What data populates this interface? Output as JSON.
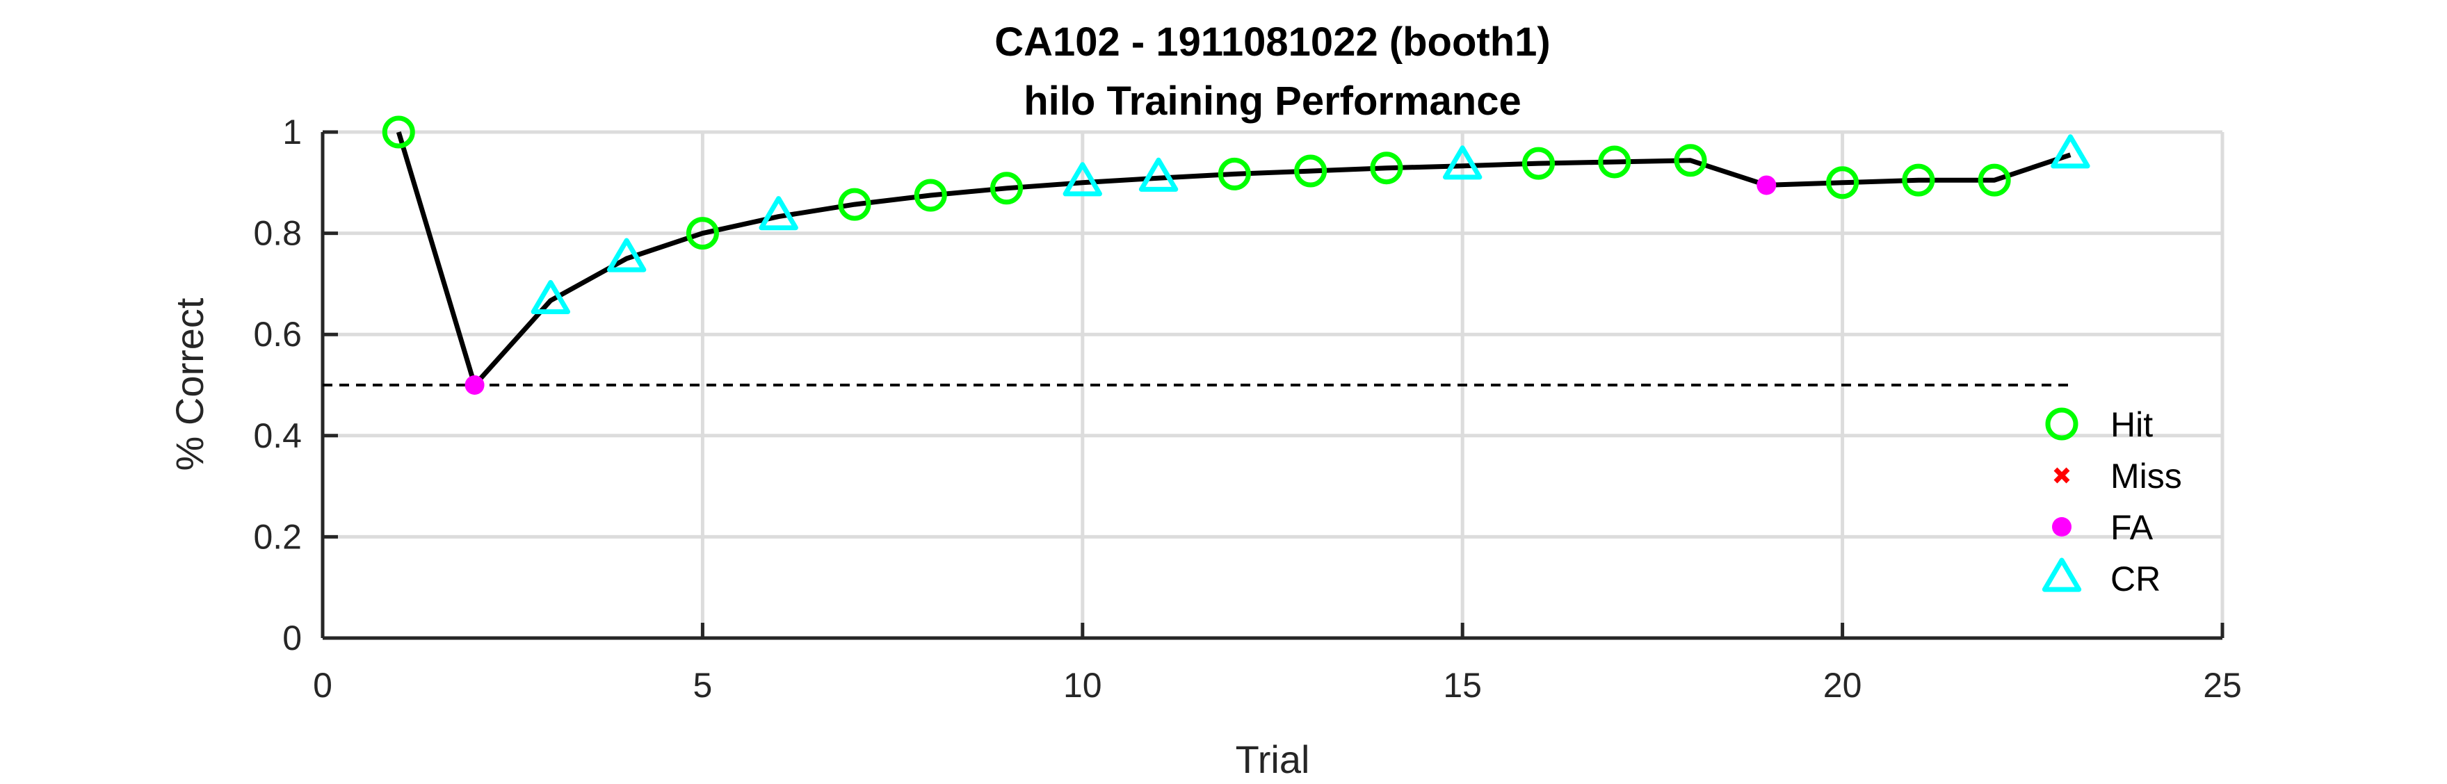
{
  "chart_data": {
    "type": "line",
    "title": [
      "CA102 - 1911081022 (booth1)",
      "hilo Training Performance"
    ],
    "xlabel": "Trial",
    "ylabel": "% Correct",
    "xlim": [
      0,
      25
    ],
    "ylim": [
      0,
      1
    ],
    "xticks": [
      0,
      5,
      10,
      15,
      20,
      25
    ],
    "yticks": [
      0,
      0.2,
      0.4,
      0.6,
      0.8,
      1
    ],
    "xtick_labels": [
      "0",
      "5",
      "10",
      "15",
      "20",
      "25"
    ],
    "ytick_labels": [
      "0",
      "0.2",
      "0.4",
      "0.6",
      "0.8",
      "1"
    ],
    "grid": true,
    "x": [
      1,
      2,
      3,
      4,
      5,
      6,
      7,
      8,
      9,
      10,
      11,
      12,
      13,
      14,
      15,
      16,
      17,
      18,
      19,
      20,
      21,
      22,
      23
    ],
    "y": [
      1.0,
      0.5,
      0.667,
      0.75,
      0.8,
      0.833,
      0.857,
      0.875,
      0.889,
      0.9,
      0.909,
      0.917,
      0.923,
      0.929,
      0.933,
      0.938,
      0.941,
      0.944,
      0.895,
      0.9,
      0.905,
      0.905,
      0.955
    ],
    "outcomes": [
      "Hit",
      "FA",
      "CR",
      "CR",
      "Hit",
      "CR",
      "Hit",
      "Hit",
      "Hit",
      "CR",
      "CR",
      "Hit",
      "Hit",
      "Hit",
      "CR",
      "Hit",
      "Hit",
      "Hit",
      "FA",
      "Hit",
      "Hit",
      "Hit",
      "CR"
    ],
    "chance_line": {
      "y": 0.5,
      "x": [
        0,
        23
      ],
      "style": "dashed"
    },
    "legend": {
      "placement": "lower-right",
      "entries": [
        {
          "label": "Hit",
          "marker": "circle-open",
          "color": "#00ff00"
        },
        {
          "label": "Miss",
          "marker": "x",
          "color": "#ff0000"
        },
        {
          "label": "FA",
          "marker": "dot-filled",
          "color": "#ff00ff"
        },
        {
          "label": "CR",
          "marker": "triangle-open",
          "color": "#00ffff"
        }
      ]
    },
    "colors": {
      "line": "#000000",
      "grid": "#dcdcdc",
      "axis": "#262626"
    }
  }
}
